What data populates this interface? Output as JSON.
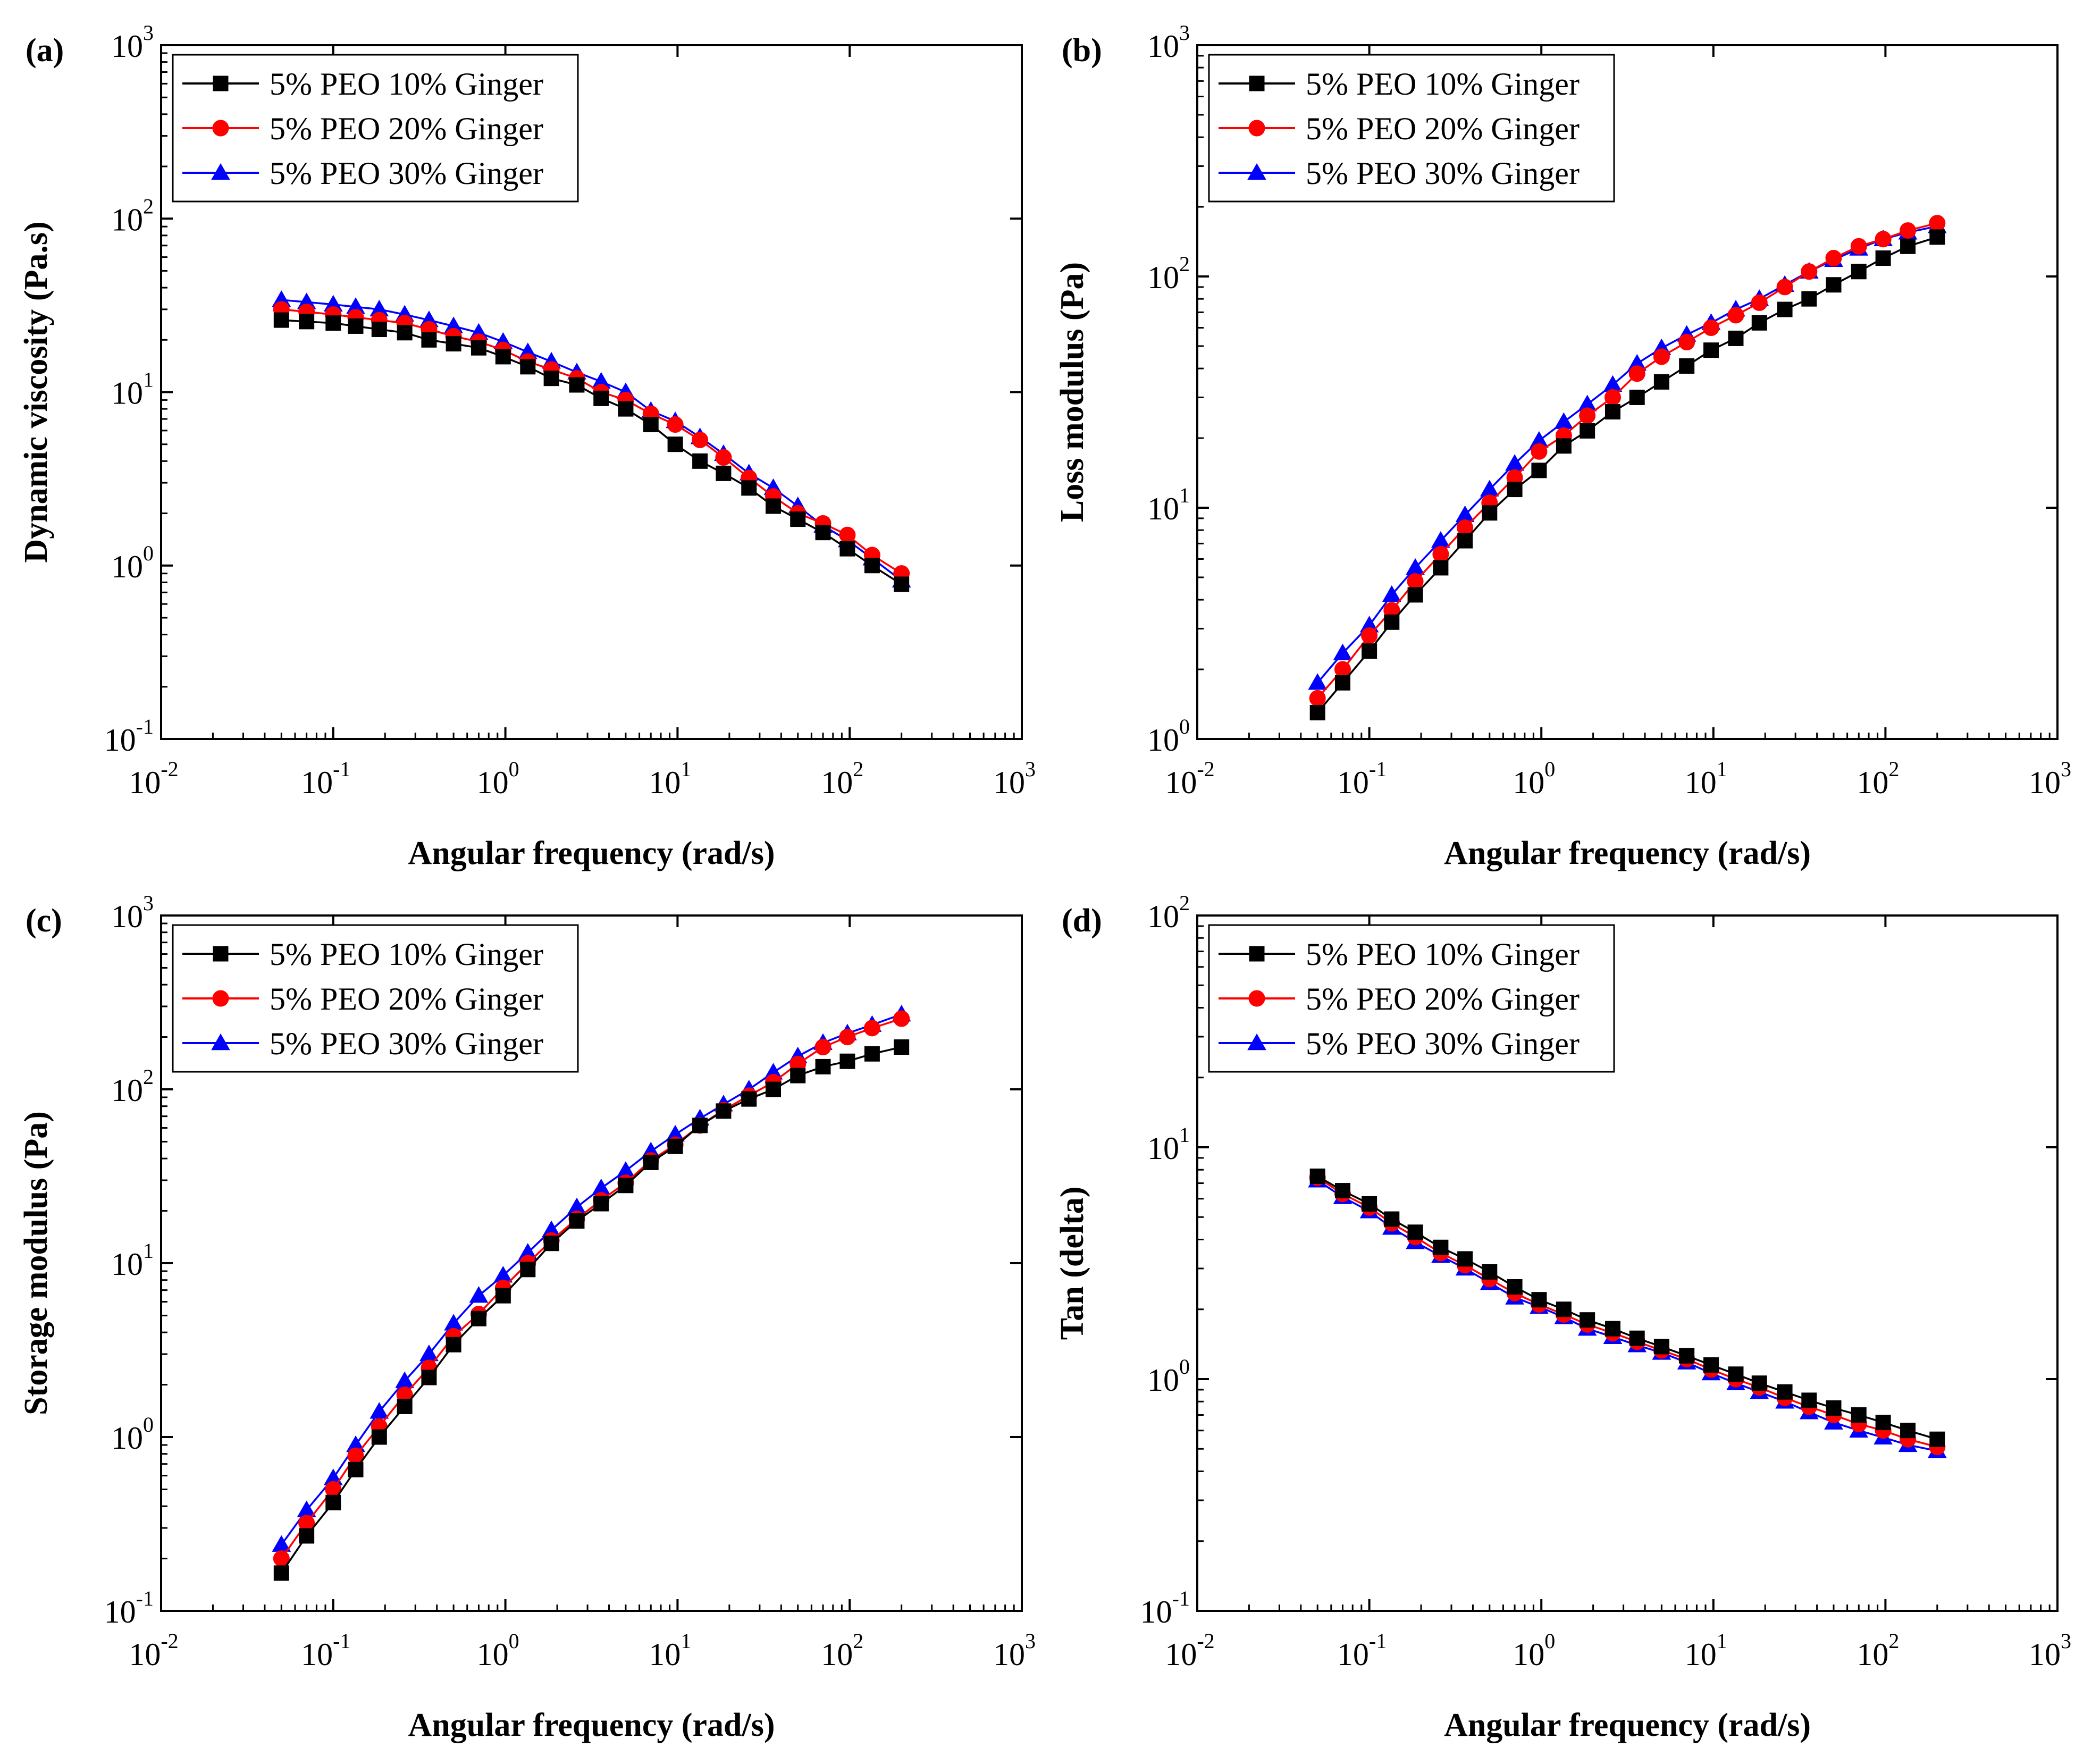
{
  "figure": {
    "series_styles": [
      {
        "color": "#000000",
        "marker": "square"
      },
      {
        "color": "#ff0000",
        "marker": "circle"
      },
      {
        "color": "#0000ff",
        "marker": "triangle"
      }
    ]
  },
  "chart_data": [
    {
      "type": "line",
      "panel_label": "(a)",
      "xlabel": "Angular frequency (rad/s)",
      "ylabel": "Dynamic viscosity (Pa.s)",
      "xscale": "log",
      "yscale": "log",
      "xlim": [
        0.01,
        1000
      ],
      "ylim": [
        0.1,
        1000
      ],
      "x_tick_exponents": [
        "-2",
        "-1",
        "0",
        "1",
        "2",
        "3"
      ],
      "y_tick_exponents": [
        "-1",
        "0",
        "1",
        "2",
        "3"
      ],
      "tick_base": "10",
      "legend": "top-left",
      "grid": false,
      "x": [
        0.05,
        0.07,
        0.1,
        0.135,
        0.185,
        0.26,
        0.36,
        0.5,
        0.7,
        0.97,
        1.35,
        1.85,
        2.6,
        3.6,
        5.0,
        7.0,
        9.7,
        13.5,
        18.5,
        26,
        36,
        50,
        70,
        97,
        135,
        200
      ],
      "series": [
        {
          "name": "5% PEO 10% Ginger",
          "values": [
            26,
            25.5,
            25,
            24,
            23,
            22,
            20,
            19,
            18,
            16,
            14,
            12,
            11,
            9.2,
            8,
            6.5,
            5,
            4,
            3.4,
            2.8,
            2.2,
            1.85,
            1.55,
            1.25,
            1.0,
            0.78
          ]
        },
        {
          "name": "5% PEO 20% Ginger",
          "values": [
            30,
            29,
            28,
            27,
            26,
            25,
            23,
            21,
            19.5,
            17.5,
            15,
            13.5,
            12,
            10,
            9,
            7.5,
            6.5,
            5.3,
            4.2,
            3.2,
            2.5,
            2.0,
            1.75,
            1.5,
            1.15,
            0.9
          ]
        },
        {
          "name": "5% PEO 30% Ginger",
          "values": [
            34,
            33,
            32,
            31,
            30,
            28,
            26,
            24,
            22,
            19.5,
            17,
            15,
            13,
            11.5,
            10,
            7.8,
            6.8,
            5.5,
            4.4,
            3.4,
            2.8,
            2.2,
            1.7,
            1.4,
            1.1,
            0.82
          ]
        }
      ]
    },
    {
      "type": "line",
      "panel_label": "(b)",
      "xlabel": "Angular frequency (rad/s)",
      "ylabel": "Loss modulus (Pa)",
      "xscale": "log",
      "yscale": "log",
      "xlim": [
        0.01,
        1000
      ],
      "ylim": [
        1,
        1000
      ],
      "x_tick_exponents": [
        "-2",
        "-1",
        "0",
        "1",
        "2",
        "3"
      ],
      "y_tick_exponents": [
        "0",
        "1",
        "2",
        "3"
      ],
      "tick_base": "10",
      "legend": "top-left",
      "grid": false,
      "x": [
        0.05,
        0.07,
        0.1,
        0.135,
        0.185,
        0.26,
        0.36,
        0.5,
        0.7,
        0.97,
        1.35,
        1.85,
        2.6,
        3.6,
        5.0,
        7.0,
        9.7,
        13.5,
        18.5,
        26,
        36,
        50,
        70,
        97,
        135,
        200
      ],
      "series": [
        {
          "name": "5% PEO 10% Ginger",
          "values": [
            1.3,
            1.75,
            2.4,
            3.2,
            4.2,
            5.5,
            7.2,
            9.5,
            12,
            14.5,
            18.5,
            21.5,
            26,
            30,
            35,
            41,
            48,
            54,
            63,
            72,
            80,
            92,
            105,
            120,
            135,
            148
          ]
        },
        {
          "name": "5% PEO 20% Ginger",
          "values": [
            1.5,
            2.0,
            2.8,
            3.6,
            4.8,
            6.3,
            8.2,
            10.5,
            13.5,
            17.5,
            20.5,
            25,
            30,
            38,
            45,
            52,
            60,
            68,
            77,
            90,
            105,
            120,
            135,
            145,
            158,
            170
          ]
        },
        {
          "name": "5% PEO 30% Ginger",
          "values": [
            1.75,
            2.35,
            3.1,
            4.2,
            5.5,
            7.2,
            9.3,
            12,
            15.5,
            19.5,
            23.5,
            28,
            34,
            42,
            49,
            56,
            63,
            72,
            80,
            92,
            105,
            118,
            132,
            145,
            155,
            165
          ]
        }
      ]
    },
    {
      "type": "line",
      "panel_label": "(c)",
      "xlabel": "Angular frequency (rad/s)",
      "ylabel": "Storage modulus (Pa)",
      "xscale": "log",
      "yscale": "log",
      "xlim": [
        0.01,
        1000
      ],
      "ylim": [
        0.1,
        1000
      ],
      "x_tick_exponents": [
        "-2",
        "-1",
        "0",
        "1",
        "2",
        "3"
      ],
      "y_tick_exponents": [
        "-1",
        "0",
        "1",
        "2",
        "3"
      ],
      "tick_base": "10",
      "legend": "top-left",
      "grid": false,
      "x": [
        0.05,
        0.07,
        0.1,
        0.135,
        0.185,
        0.26,
        0.36,
        0.5,
        0.7,
        0.97,
        1.35,
        1.85,
        2.6,
        3.6,
        5.0,
        7.0,
        9.7,
        13.5,
        18.5,
        26,
        36,
        50,
        70,
        97,
        135,
        200
      ],
      "series": [
        {
          "name": "5% PEO 10% Ginger",
          "values": [
            0.165,
            0.27,
            0.42,
            0.65,
            1.0,
            1.5,
            2.2,
            3.4,
            4.8,
            6.5,
            9.2,
            13,
            17.5,
            22,
            28,
            38,
            47,
            62,
            75,
            88,
            100,
            120,
            135,
            145,
            160,
            175
          ]
        },
        {
          "name": "5% PEO 20% Ginger",
          "values": [
            0.2,
            0.32,
            0.5,
            0.78,
            1.15,
            1.75,
            2.5,
            3.8,
            5.1,
            7.2,
            10,
            13.5,
            18,
            23,
            29,
            39,
            48,
            62,
            76,
            92,
            110,
            140,
            175,
            200,
            225,
            255
          ]
        },
        {
          "name": "5% PEO 30% Ginger",
          "values": [
            0.24,
            0.38,
            0.58,
            0.9,
            1.4,
            2.1,
            3.0,
            4.5,
            6.5,
            8.5,
            11.5,
            15.5,
            21,
            27,
            34,
            44,
            55,
            68,
            82,
            100,
            125,
            155,
            185,
            210,
            235,
            270
          ]
        }
      ]
    },
    {
      "type": "line",
      "panel_label": "(d)",
      "xlabel": "Angular frequency (rad/s)",
      "ylabel": "Tan (delta)",
      "xscale": "log",
      "yscale": "log",
      "xlim": [
        0.01,
        1000
      ],
      "ylim": [
        0.1,
        100
      ],
      "x_tick_exponents": [
        "-2",
        "-1",
        "0",
        "1",
        "2",
        "3"
      ],
      "y_tick_exponents": [
        "-1",
        "0",
        "1",
        "2"
      ],
      "tick_base": "10",
      "legend": "top-left",
      "grid": false,
      "x": [
        0.05,
        0.07,
        0.1,
        0.135,
        0.185,
        0.26,
        0.36,
        0.5,
        0.7,
        0.97,
        1.35,
        1.85,
        2.6,
        3.6,
        5.0,
        7.0,
        9.7,
        13.5,
        18.5,
        26,
        36,
        50,
        70,
        97,
        135,
        200
      ],
      "series": [
        {
          "name": "5% PEO 10% Ginger",
          "values": [
            7.5,
            6.5,
            5.7,
            4.9,
            4.3,
            3.7,
            3.3,
            2.9,
            2.5,
            2.2,
            2.0,
            1.8,
            1.65,
            1.5,
            1.38,
            1.26,
            1.15,
            1.05,
            0.96,
            0.88,
            0.81,
            0.75,
            0.7,
            0.65,
            0.6,
            0.55
          ]
        },
        {
          "name": "5% PEO 20% Ginger",
          "values": [
            7.4,
            6.3,
            5.5,
            4.7,
            4.1,
            3.5,
            3.1,
            2.7,
            2.35,
            2.1,
            1.9,
            1.72,
            1.58,
            1.45,
            1.33,
            1.22,
            1.1,
            1.0,
            0.92,
            0.83,
            0.76,
            0.7,
            0.64,
            0.6,
            0.55,
            0.51
          ]
        },
        {
          "name": "5% PEO 30% Ginger",
          "values": [
            7.2,
            6.1,
            5.3,
            4.5,
            3.9,
            3.4,
            3.0,
            2.6,
            2.25,
            2.05,
            1.85,
            1.65,
            1.52,
            1.4,
            1.3,
            1.18,
            1.06,
            0.96,
            0.88,
            0.8,
            0.72,
            0.65,
            0.6,
            0.56,
            0.52,
            0.49
          ]
        }
      ]
    }
  ]
}
